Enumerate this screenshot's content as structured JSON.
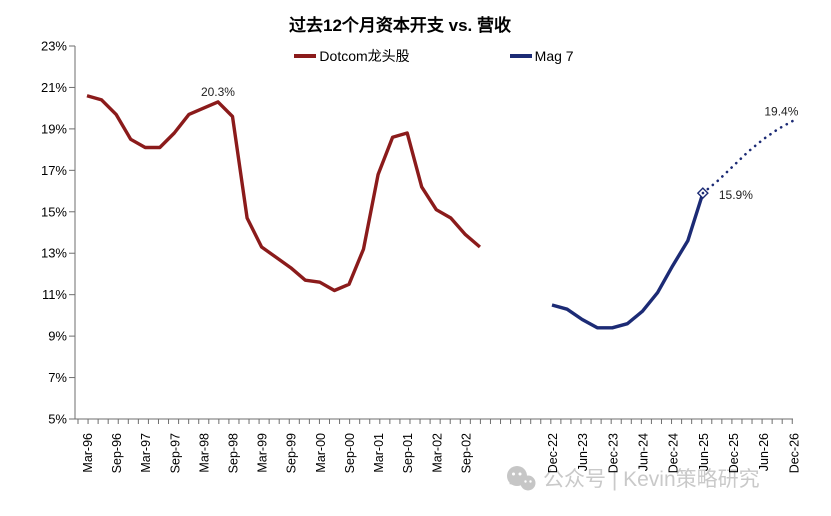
{
  "watermark": {
    "text": "公众号 | Kevin策略研究"
  },
  "chart_data": {
    "type": "line",
    "title": "过去12个月资本开支 vs. 营收",
    "legend": [
      {
        "label": "Dotcom龙头股",
        "color": "#8B1B1B"
      },
      {
        "label": "Mag 7",
        "color": "#1C2B75"
      }
    ],
    "y_axis": {
      "min": 5,
      "max": 23,
      "step": 2,
      "suffix": "%",
      "tick_labels": [
        "23%",
        "21%",
        "19%",
        "17%",
        "15%",
        "13%",
        "11%",
        "9%",
        "7%",
        "5%"
      ]
    },
    "x_axis": {
      "era1_tick_labels": [
        "Mar-96",
        "Sep-96",
        "Mar-97",
        "Sep-97",
        "Mar-98",
        "Sep-98",
        "Mar-99",
        "Sep-99",
        "Mar-00",
        "Sep-00",
        "Mar-01",
        "Sep-01",
        "Mar-02",
        "Sep-02"
      ],
      "era2_tick_labels": [
        "Dec-22",
        "Jun-23",
        "Dec-23",
        "Jun-24",
        "Dec-24",
        "Jun-25",
        "Dec-25",
        "Jun-26",
        "Dec-26"
      ],
      "note": "axis has a time break between Dec-02 and Dec-22"
    },
    "series": [
      {
        "key": "dotcom",
        "name": "Dotcom龙头股",
        "color": "#8B1B1B",
        "style": "solid",
        "era": "era1",
        "start_offset": 0,
        "x": [
          "Mar-96",
          "Jun-96",
          "Sep-96",
          "Dec-96",
          "Mar-97",
          "Jun-97",
          "Sep-97",
          "Dec-97",
          "Mar-98",
          "Jun-98",
          "Sep-98",
          "Dec-98",
          "Mar-99",
          "Jun-99",
          "Sep-99",
          "Dec-99",
          "Mar-00",
          "Jun-00",
          "Sep-00",
          "Dec-00",
          "Mar-01",
          "Jun-01",
          "Sep-01",
          "Dec-01",
          "Mar-02",
          "Jun-02",
          "Sep-02",
          "Dec-02"
        ],
        "values": [
          20.6,
          20.4,
          19.7,
          18.5,
          18.1,
          18.1,
          18.8,
          19.7,
          20.0,
          20.3,
          19.6,
          14.7,
          13.3,
          12.8,
          12.3,
          11.7,
          11.6,
          11.2,
          11.5,
          13.2,
          16.8,
          18.6,
          18.8,
          16.2,
          15.1,
          14.7,
          13.9,
          13.3
        ]
      },
      {
        "key": "mag7-actual",
        "name": "Mag 7",
        "color": "#1C2B75",
        "style": "solid",
        "era": "era2",
        "start_offset": 0,
        "end_marker": "open-diamond",
        "x": [
          "Dec-22",
          "Mar-23",
          "Jun-23",
          "Sep-23",
          "Dec-23",
          "Mar-24",
          "Jun-24",
          "Sep-24",
          "Dec-24",
          "Mar-25",
          "Jun-25"
        ],
        "values": [
          10.5,
          10.3,
          9.8,
          9.4,
          9.4,
          9.6,
          10.2,
          11.1,
          12.4,
          13.6,
          15.9
        ]
      },
      {
        "key": "mag7-forecast",
        "name": "Mag 7",
        "color": "#1C2B75",
        "style": "dotted",
        "era": "era2",
        "start_offset": 10,
        "x": [
          "Jun-25",
          "Sep-25",
          "Dec-25",
          "Mar-26",
          "Jun-26",
          "Sep-26",
          "Dec-26"
        ],
        "values": [
          15.9,
          16.5,
          17.2,
          17.9,
          18.5,
          19.0,
          19.4
        ]
      }
    ],
    "annotations": [
      {
        "text": "20.3%",
        "series_key": "dotcom",
        "point_index": 9,
        "placement": "above"
      },
      {
        "text": "15.9%",
        "series_key": "mag7-actual",
        "point_index": 10,
        "placement": "right"
      },
      {
        "text": "19.4%",
        "series_key": "mag7-forecast",
        "point_index": 6,
        "placement": "above-left"
      }
    ]
  }
}
